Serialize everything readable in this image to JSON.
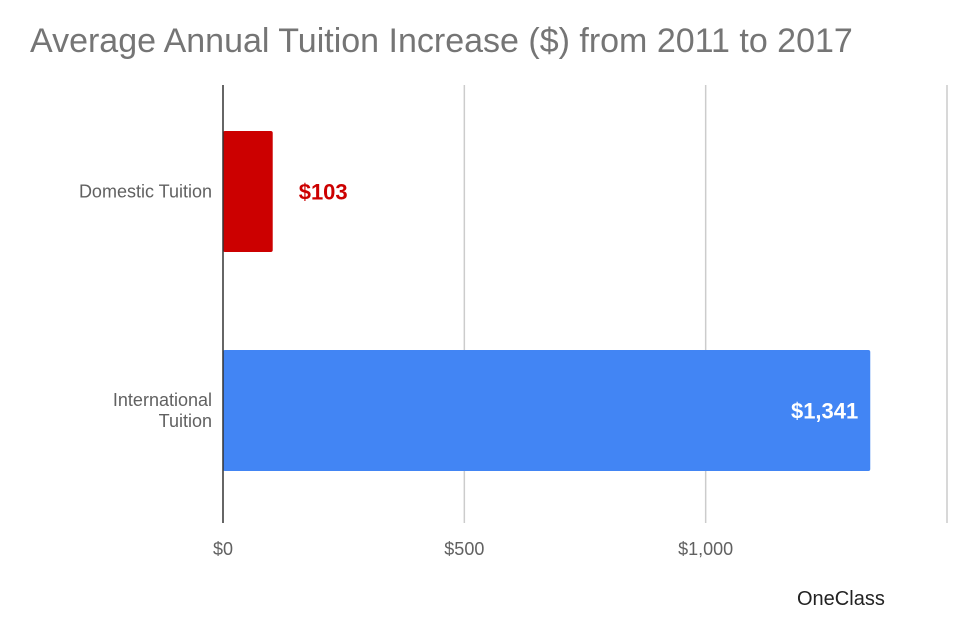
{
  "chart_data": {
    "type": "bar",
    "orientation": "horizontal",
    "title": "Average Annual Tuition Increase ($) from 2011 to 2017",
    "categories": [
      "Domestic Tuition",
      "International Tuition"
    ],
    "values": [
      103,
      1341
    ],
    "value_labels": [
      "$103",
      "$1,341"
    ],
    "colors": [
      "#cc0000",
      "#4285f4"
    ],
    "xlim": [
      0,
      1500
    ],
    "x_ticks": [
      0,
      500,
      1000,
      1500
    ],
    "x_tick_labels": [
      "$0",
      "$500",
      "$1,000",
      ""
    ],
    "grid": true,
    "legend": "none"
  },
  "watermark": {
    "text": "OneClass"
  }
}
